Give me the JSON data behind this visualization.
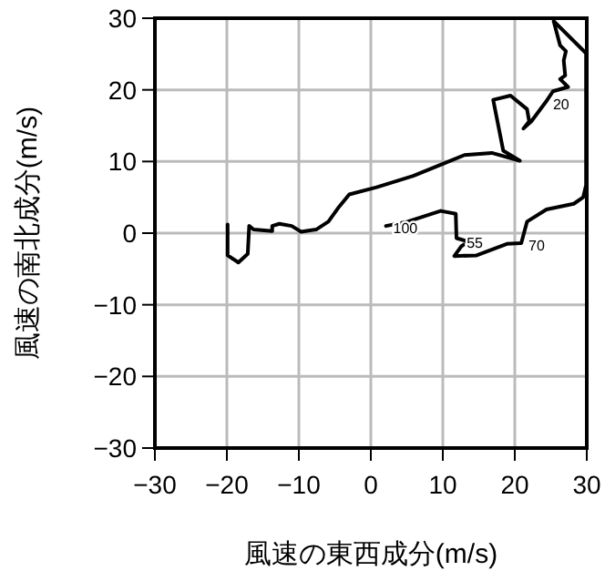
{
  "chart_data": {
    "type": "line",
    "xlabel": "風速の東西成分(m/s)",
    "ylabel": "風速の南北成分(m/s)",
    "xlim": [
      -30,
      30
    ],
    "ylim": [
      -30,
      30
    ],
    "xticks": [
      -30,
      -20,
      -10,
      0,
      10,
      20,
      30
    ],
    "yticks": [
      -30,
      -20,
      -10,
      0,
      10,
      20,
      30
    ],
    "grid": true,
    "series": [
      {
        "color": "#000000",
        "x": [
          2.1,
          5.1,
          9.7,
          11.8,
          11.9,
          13.6,
          12.6,
          11.6,
          14.7,
          18.9,
          20.9,
          21.7,
          24.4,
          28.2,
          29.5,
          29.9,
          29.9,
          25.4,
          26.3,
          27.1,
          26.8,
          27.0,
          26.3,
          27.4,
          25.3,
          24.3,
          22.3,
          21.2,
          22.0,
          21.7,
          19.4,
          17.0,
          18.4,
          20.7,
          16.8,
          13.0,
          10.1,
          5.9,
          0.8,
          -3.0,
          -4.4,
          -5.9,
          -7.6,
          -9.7,
          -11.0,
          -12.7,
          -13.7,
          -13.7,
          -16.3,
          -16.9,
          -17.1,
          -18.4,
          -19.9,
          -19.9
        ],
        "values": [
          1.0,
          1.6,
          3.1,
          2.7,
          -0.7,
          -1.2,
          -1.8,
          -3.2,
          -3.1,
          -1.5,
          -1.4,
          1.6,
          3.3,
          4.1,
          5.0,
          6.7,
          25.1,
          29.6,
          26.2,
          25.4,
          24.1,
          22.0,
          21.5,
          20.4,
          19.8,
          18.3,
          15.6,
          14.6,
          15.6,
          17.3,
          19.2,
          18.6,
          11.5,
          10.1,
          11.2,
          10.9,
          9.7,
          8.0,
          6.4,
          5.4,
          3.7,
          1.6,
          0.5,
          0.2,
          1.0,
          1.3,
          1.0,
          0.3,
          0.5,
          1.0,
          -2.9,
          -4.1,
          -3.1,
          1.2
        ]
      }
    ],
    "annotations": [
      {
        "text": "20",
        "x": 24.3,
        "y": 18.3
      },
      {
        "text": "100",
        "x": 2.1,
        "y": 1.0
      },
      {
        "text": "55",
        "x": 12.3,
        "y": -1.0
      },
      {
        "text": "70",
        "x": 20.9,
        "y": -1.4
      }
    ]
  }
}
